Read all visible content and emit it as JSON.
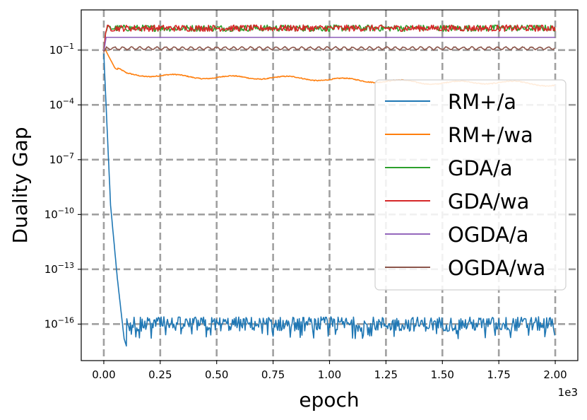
{
  "chart_data": {
    "type": "line",
    "title": "",
    "xlabel": "epoch",
    "ylabel": "Duality Gap",
    "x_scale_label": "1e3",
    "x_tick_labels": [
      "0.00",
      "0.25",
      "0.50",
      "0.75",
      "1.00",
      "1.25",
      "1.50",
      "1.75",
      "2.00"
    ],
    "x_ticks": [
      0,
      250,
      500,
      750,
      1000,
      1250,
      1500,
      1750,
      2000
    ],
    "xlim": [
      -100,
      2100
    ],
    "y_scale": "log",
    "y_ticks_exponent": [
      -1,
      -4,
      -7,
      -10,
      -13,
      -16
    ],
    "y_tick_base": "10",
    "ylim_exponent": [
      -18,
      1.2
    ],
    "grid": true,
    "legend_position": "right",
    "series": [
      {
        "name": "RM+/a",
        "color": "#1f77b4",
        "points": [
          [
            0,
            -1.2
          ],
          [
            10,
            -4
          ],
          [
            30,
            -9.5
          ],
          [
            60,
            -13.5
          ],
          [
            90,
            -16.8
          ],
          [
            100,
            -17.2
          ],
          [
            110,
            -16
          ],
          [
            2000,
            -16
          ]
        ],
        "noise": "oscillating around 1e-16 between 1e-17 and 3e-16 after epoch 100"
      },
      {
        "name": "RM+/wa",
        "color": "#ff7f0e",
        "points": [
          [
            0,
            -0.8
          ],
          [
            20,
            -1.3
          ],
          [
            50,
            -2.0
          ],
          [
            100,
            -2.3
          ],
          [
            250,
            -2.4
          ],
          [
            500,
            -2.5
          ],
          [
            750,
            -2.5
          ],
          [
            1000,
            -2.6
          ],
          [
            1250,
            -2.7
          ],
          [
            1500,
            -2.8
          ],
          [
            1750,
            -2.75
          ],
          [
            2000,
            -2.9
          ]
        ]
      },
      {
        "name": "GDA/a",
        "color": "#2ca02c",
        "points": [
          [
            0,
            -1.1
          ],
          [
            10,
            0.2
          ],
          [
            2000,
            0.2
          ]
        ],
        "noise": "small oscillation around 1.6"
      },
      {
        "name": "GDA/wa",
        "color": "#d62728",
        "points": [
          [
            0,
            -1.1
          ],
          [
            10,
            0.2
          ],
          [
            2000,
            0.2
          ]
        ],
        "noise": "small oscillation around 1.6"
      },
      {
        "name": "OGDA/a",
        "color": "#9467bd",
        "points": [
          [
            0,
            -1.1
          ],
          [
            10,
            -0.3
          ],
          [
            2000,
            -0.3
          ]
        ]
      },
      {
        "name": "OGDA/wa",
        "color": "#8c564b",
        "points": [
          [
            0,
            -1.1
          ],
          [
            10,
            -0.9
          ],
          [
            2000,
            -0.9
          ]
        ],
        "noise": "small periodic wiggle around 0.13"
      }
    ]
  }
}
